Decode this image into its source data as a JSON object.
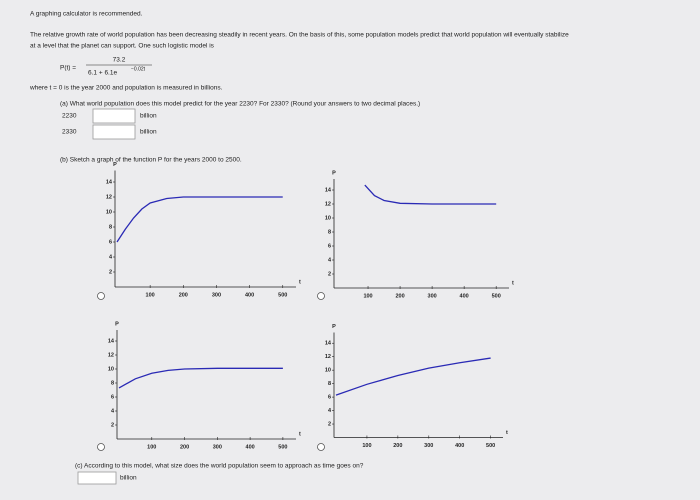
{
  "header": "A graphing calculator is recommended.",
  "intro": [
    "The relative growth rate of world population has been decreasing steadily in recent years. On the basis of this, some population models predict that world population will eventually stabilize",
    "at a level that the planet can support. One such logistic model is"
  ],
  "formula": {
    "lhs": "P(t) =",
    "numerator": "73.2",
    "denominator": "6.1 + 6.1e",
    "exponent": "−0.02t"
  },
  "where": "where t = 0 is the year 2000 and population is measured in billions.",
  "part_a": {
    "question": "(a) What world population does this model predict for the year 2230? For 2330? (Round your answers to two decimal places.)",
    "rows": [
      {
        "year": "2230",
        "unit": "billion"
      },
      {
        "year": "2330",
        "unit": "billion"
      }
    ]
  },
  "part_b": {
    "question": "(b) Sketch a graph of the function P for the years 2000 to 2500.",
    "graphs": [
      {
        "y_label": "P",
        "x_label": "t",
        "xlim": [
          0,
          540
        ],
        "ylim": [
          0,
          15
        ],
        "yticks": [
          2,
          4,
          6,
          8,
          10,
          12,
          14
        ],
        "xticks": [
          100,
          200,
          300,
          400,
          500
        ],
        "x": [
          0,
          25,
          50,
          75,
          100,
          150,
          200,
          300,
          400,
          500
        ],
        "values": [
          6,
          7.7,
          9.2,
          10.4,
          11.2,
          11.8,
          12,
          12,
          12,
          12
        ]
      },
      {
        "y_label": "P",
        "x_label": "t",
        "xlim": [
          0,
          540
        ],
        "ylim": [
          0,
          15
        ],
        "yticks": [
          2,
          4,
          6,
          8,
          10,
          12,
          14
        ],
        "xticks": [
          100,
          200,
          300,
          400,
          500
        ],
        "x": [
          90,
          120,
          150,
          200,
          300,
          400,
          500
        ],
        "values": [
          14.7,
          13.2,
          12.5,
          12.1,
          12,
          12,
          12
        ]
      },
      {
        "y_label": "P",
        "x_label": "t",
        "xlim": [
          0,
          540
        ],
        "ylim": [
          0,
          15
        ],
        "yticks": [
          2,
          4,
          6,
          8,
          10,
          12,
          14
        ],
        "xticks": [
          100,
          200,
          300,
          400,
          500
        ],
        "x": [
          0,
          50,
          100,
          150,
          200,
          300,
          400,
          500
        ],
        "values": [
          7.3,
          8.6,
          9.4,
          9.8,
          10,
          10.1,
          10.1,
          10.1
        ]
      },
      {
        "y_label": "P",
        "x_label": "t",
        "xlim": [
          0,
          540
        ],
        "ylim": [
          0,
          15
        ],
        "yticks": [
          2,
          4,
          6,
          8,
          10,
          12,
          14
        ],
        "xticks": [
          100,
          200,
          300,
          400,
          500
        ],
        "x": [
          0,
          100,
          200,
          300,
          400,
          500
        ],
        "values": [
          6.3,
          7.9,
          9.2,
          10.3,
          11.1,
          11.8
        ]
      }
    ]
  },
  "part_c": {
    "question": "(c) According to this model, what size does the world population seem to approach as time goes on?",
    "unit": "billion"
  }
}
